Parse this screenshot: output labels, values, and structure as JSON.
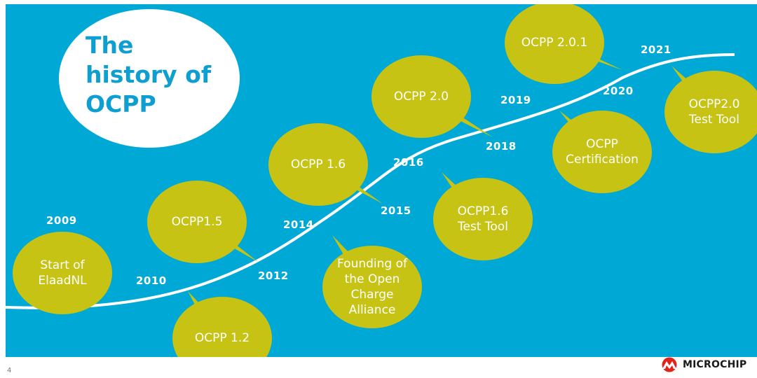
{
  "slide": {
    "title_lines": [
      "The",
      "history of",
      "OCPP"
    ],
    "page_number": "4",
    "logo_text": "MICROCHIP"
  },
  "colors": {
    "background": "#00a8d6",
    "bubble": "#c6c314",
    "title_bg": "#ffffff",
    "title_text": "#0f9ed0",
    "curve": "#ffffff",
    "logo_red": "#e2231a"
  },
  "timeline": {
    "years": [
      "2009",
      "2010",
      "2012",
      "2014",
      "2015",
      "2016",
      "2018",
      "2019",
      "2020",
      "2021"
    ],
    "milestones": [
      {
        "id": "elaadnl",
        "text": "Start of\nElaadNL"
      },
      {
        "id": "ocpp-1-2",
        "text": "OCPP 1.2"
      },
      {
        "id": "ocpp-1-5",
        "text": "OCPP1.5"
      },
      {
        "id": "oca",
        "text": "Founding of\nthe Open\nCharge\nAlliance"
      },
      {
        "id": "ocpp-1-6",
        "text": "OCPP 1.6"
      },
      {
        "id": "ocpp-1-6-test-tool",
        "text": "OCPP1.6\nTest Tool"
      },
      {
        "id": "ocpp-2-0",
        "text": "OCPP 2.0"
      },
      {
        "id": "ocpp-certification",
        "text": "OCPP\nCertification"
      },
      {
        "id": "ocpp-2-0-1",
        "text": "OCPP 2.0.1"
      },
      {
        "id": "ocpp-2-0-test-tool",
        "text": "OCPP2.0\nTest Tool"
      }
    ]
  }
}
